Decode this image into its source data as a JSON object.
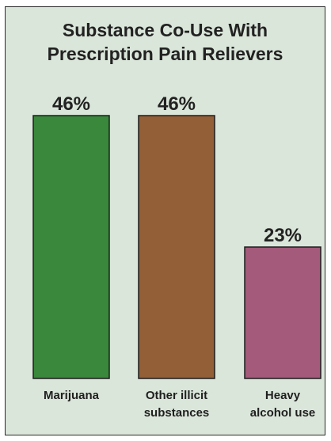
{
  "chart_data": {
    "type": "bar",
    "title_lines": [
      "Substance Co-Use With",
      "Prescription Pain Relievers"
    ],
    "categories": [
      [
        "Marijuana"
      ],
      [
        "Other illicit",
        "substances"
      ],
      [
        "Heavy",
        "alcohol use"
      ]
    ],
    "values": [
      46,
      46,
      23
    ],
    "value_labels": [
      "46%",
      "46%",
      "23%"
    ],
    "colors": [
      "#39883b",
      "#935f36",
      "#a45a7a"
    ],
    "ylim": [
      0,
      46
    ],
    "grid": false,
    "legend": "none"
  }
}
